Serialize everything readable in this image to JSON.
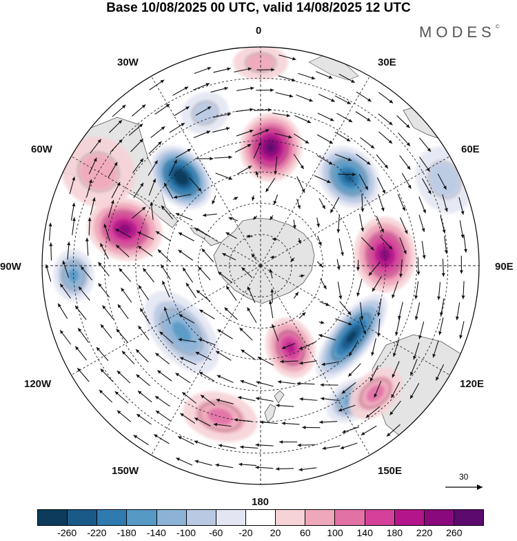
{
  "title": "Base 10/08/2025 00 UTC, valid 14/08/2025 12 UTC",
  "brand": "MODES",
  "brand_mark": "©",
  "longitude_labels": {
    "top": "0",
    "top_right": "30E",
    "right_upper": "60E",
    "right": "90E",
    "right_lower": "120E",
    "bottom_right": "150E",
    "bottom": "180",
    "bottom_left": "150W",
    "left_lower": "120W",
    "left": "90W",
    "left_upper": "60W",
    "top_left": "30W"
  },
  "reference_vector": "30",
  "colorbar": {
    "colors": [
      "#0c3b5c",
      "#1a5a88",
      "#2f7bb0",
      "#5799c5",
      "#8cb3d6",
      "#b9c9e3",
      "#e3e6f2",
      "#ffffff",
      "#f6d3d7",
      "#efa7bb",
      "#e271a6",
      "#d5419a",
      "#b5158a",
      "#8a097c",
      "#5c0a6e"
    ],
    "ticks": [
      "-260",
      "-220",
      "-180",
      "-140",
      "-100",
      "-60",
      "-20",
      "20",
      "60",
      "100",
      "140",
      "180",
      "220",
      "260"
    ]
  },
  "anomaly_centers": [
    {
      "lon": -42,
      "lat": -52,
      "value": -280,
      "rx": 38,
      "ry": 52
    },
    {
      "lon": 5,
      "lat": -52,
      "value": 250,
      "rx": 45,
      "ry": 50
    },
    {
      "lon": 45,
      "lat": -50,
      "value": -220,
      "rx": 50,
      "ry": 40
    },
    {
      "lon": 85,
      "lat": -50,
      "value": 200,
      "rx": 55,
      "ry": 45
    },
    {
      "lon": 128,
      "lat": -53,
      "value": -230,
      "rx": 75,
      "ry": 30
    },
    {
      "lon": 146,
      "lat": -38,
      "value": -120,
      "rx": 40,
      "ry": 28
    },
    {
      "lon": 138,
      "lat": -35,
      "value": 100,
      "rx": 45,
      "ry": 30
    },
    {
      "lon": 160,
      "lat": -62,
      "value": 180,
      "rx": 35,
      "ry": 45
    },
    {
      "lon": -130,
      "lat": -57,
      "value": -140,
      "rx": 70,
      "ry": 40
    },
    {
      "lon": -165,
      "lat": -40,
      "value": 80,
      "rx": 55,
      "ry": 35
    },
    {
      "lon": -75,
      "lat": -45,
      "value": 220,
      "rx": 45,
      "ry": 55
    },
    {
      "lon": -93,
      "lat": -30,
      "value": -120,
      "rx": 38,
      "ry": 30
    },
    {
      "lon": -60,
      "lat": -30,
      "value": 60,
      "rx": 50,
      "ry": 55
    },
    {
      "lon": 0,
      "lat": -25,
      "value": 60,
      "rx": 40,
      "ry": 25
    },
    {
      "lon": -20,
      "lat": -38,
      "value": -60,
      "rx": 35,
      "ry": 30
    },
    {
      "lon": 65,
      "lat": -25,
      "value": -30,
      "rx": 50,
      "ry": 40
    }
  ]
}
